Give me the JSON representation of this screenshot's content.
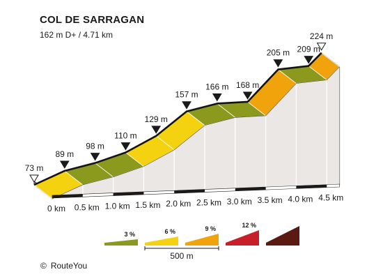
{
  "header": {
    "title": "COL DE SARRAGAN",
    "subtitle": "162 m D+ / 4.71 km"
  },
  "footer": {
    "icon": "copyright-icon",
    "icon_glyph": "©",
    "text": "RouteYou"
  },
  "chart_data": {
    "type": "area",
    "title": "COL DE SARRAGAN",
    "subtitle": "162 m D+ / 4.71 km",
    "x_unit": "km",
    "y_unit": "m",
    "x_ticks": [
      "0 km",
      "0.5 km",
      "1.0 km",
      "1.5 km",
      "2.0 km",
      "2.5 km",
      "3.0 km",
      "3.5 km",
      "4.0 km",
      "4.5 km"
    ],
    "points": [
      {
        "km": 0.0,
        "elev": 73,
        "label": "73 m",
        "marker": "start"
      },
      {
        "km": 0.5,
        "elev": 89,
        "label": "89 m",
        "marker": "point"
      },
      {
        "km": 1.0,
        "elev": 98,
        "label": "98 m",
        "marker": "point"
      },
      {
        "km": 1.5,
        "elev": 110,
        "label": "110 m",
        "marker": "point"
      },
      {
        "km": 2.0,
        "elev": 129,
        "label": "129 m",
        "marker": "point"
      },
      {
        "km": 2.5,
        "elev": 157,
        "label": "157 m",
        "marker": "point"
      },
      {
        "km": 3.0,
        "elev": 166,
        "label": "166 m",
        "marker": "point"
      },
      {
        "km": 3.5,
        "elev": 168,
        "label": "168 m",
        "marker": "point"
      },
      {
        "km": 4.0,
        "elev": 205,
        "label": "205 m",
        "marker": "point"
      },
      {
        "km": 4.5,
        "elev": 209,
        "label": "209 m",
        "marker": "point"
      },
      {
        "km": 4.71,
        "elev": 224,
        "label": "224 m",
        "marker": "end"
      }
    ],
    "segment_colors": [
      "#f5d20f",
      "#8b9a1c",
      "#8b9a1c",
      "#f5d20f",
      "#f5d20f",
      "#8b9a1c",
      "#8b9a1c",
      "#f0a30a",
      "#8b9a1c",
      "#f0a30a"
    ],
    "legend": [
      {
        "label": "3 %",
        "color": "#8b9a1c"
      },
      {
        "label": "6 %",
        "color": "#f5d20f"
      },
      {
        "label": "9 %",
        "color": "#f0a30a"
      },
      {
        "label": "12 %",
        "color": "#c8202a"
      },
      {
        "label": "",
        "color": "#5a1a12"
      }
    ],
    "scale_label": "500 m"
  }
}
